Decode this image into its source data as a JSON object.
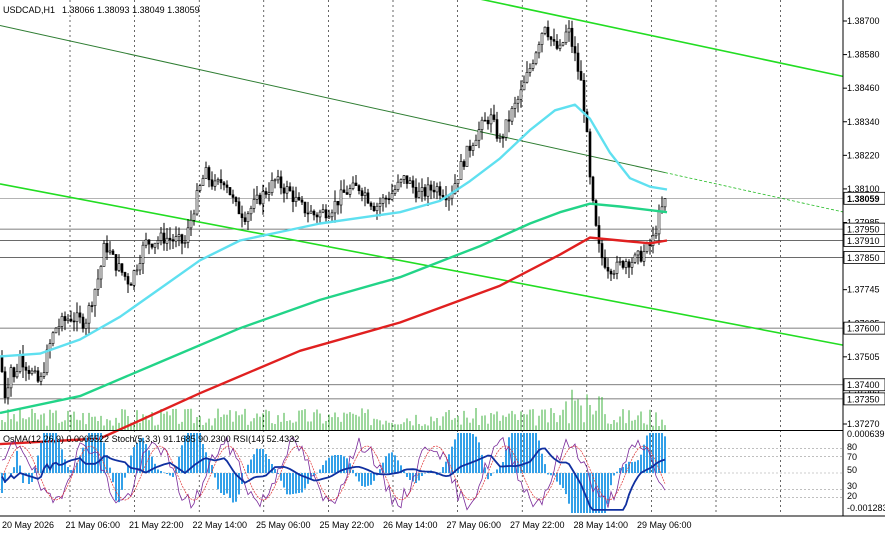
{
  "chart_data": [
    {
      "type": "candlestick",
      "symbol_header": "USDCAD,H1",
      "ohlc_header": "1.38066 1.38093 1.38049 1.38059",
      "current_price": "1.38059",
      "ylim": [
        1.3724,
        1.3876
      ],
      "y_ticks": [
        "1.38700",
        "1.38580",
        "1.38460",
        "1.38340",
        "1.38220",
        "1.38100",
        "1.37985",
        "1.37865",
        "1.37745",
        "1.37625",
        "1.37505",
        "1.37385",
        "1.37270"
      ],
      "x_labels": [
        "20 May 2026",
        "21 May 06:00",
        "21 May 22:00",
        "22 May 14:00",
        "25 May 06:00",
        "25 May 22:00",
        "26 May 14:00",
        "27 May 06:00",
        "27 May 22:00",
        "28 May 14:00",
        "29 May 06:00"
      ],
      "level_lines": [
        {
          "label": "1.37950",
          "value": 1.3795
        },
        {
          "label": "1.37910",
          "value": 1.3791
        },
        {
          "label": "1.37850",
          "value": 1.3785
        },
        {
          "label": "1.37600",
          "value": 1.376
        },
        {
          "label": "1.37400",
          "value": 1.374
        },
        {
          "label": "1.37350",
          "value": 1.3735
        }
      ],
      "close_path": [
        [
          0,
          1.375
        ],
        [
          6,
          1.3734
        ],
        [
          10,
          1.3748
        ],
        [
          14,
          1.3742
        ],
        [
          20,
          1.375
        ],
        [
          30,
          1.3745
        ],
        [
          40,
          1.374
        ],
        [
          45,
          1.3748
        ],
        [
          55,
          1.376
        ],
        [
          70,
          1.3764
        ],
        [
          85,
          1.3762
        ],
        [
          100,
          1.378
        ],
        [
          105,
          1.379
        ],
        [
          115,
          1.3783
        ],
        [
          130,
          1.3776
        ],
        [
          145,
          1.379
        ],
        [
          165,
          1.3792
        ],
        [
          185,
          1.379
        ],
        [
          195,
          1.3804
        ],
        [
          205,
          1.3815
        ],
        [
          215,
          1.381
        ],
        [
          225,
          1.3813
        ],
        [
          235,
          1.3803
        ],
        [
          245,
          1.38
        ],
        [
          260,
          1.3806
        ],
        [
          275,
          1.3812
        ],
        [
          290,
          1.3808
        ],
        [
          300,
          1.3803
        ],
        [
          315,
          1.38
        ],
        [
          330,
          1.3802
        ],
        [
          345,
          1.3808
        ],
        [
          360,
          1.381
        ],
        [
          375,
          1.3803
        ],
        [
          390,
          1.3807
        ],
        [
          405,
          1.3813
        ],
        [
          420,
          1.3807
        ],
        [
          435,
          1.381
        ],
        [
          450,
          1.3807
        ],
        [
          462,
          1.3818
        ],
        [
          475,
          1.3828
        ],
        [
          490,
          1.3835
        ],
        [
          500,
          1.3826
        ],
        [
          510,
          1.3835
        ],
        [
          520,
          1.3842
        ],
        [
          530,
          1.3852
        ],
        [
          540,
          1.3863
        ],
        [
          545,
          1.3868
        ],
        [
          553,
          1.386
        ],
        [
          560,
          1.3858
        ],
        [
          568,
          1.3866
        ],
        [
          575,
          1.3856
        ],
        [
          582,
          1.3845
        ],
        [
          586,
          1.3832
        ],
        [
          590,
          1.3812
        ],
        [
          595,
          1.3797
        ],
        [
          600,
          1.3786
        ],
        [
          608,
          1.3782
        ],
        [
          616,
          1.3781
        ],
        [
          625,
          1.3784
        ],
        [
          635,
          1.3784
        ],
        [
          645,
          1.3787
        ],
        [
          652,
          1.379
        ],
        [
          658,
          1.3798
        ],
        [
          663,
          1.3803
        ],
        [
          667,
          1.3806
        ]
      ],
      "moving_averages": [
        {
          "color": "#5fe0f0",
          "points": [
            [
              0,
              1.375
            ],
            [
              40,
              1.3751
            ],
            [
              80,
              1.3756
            ],
            [
              120,
              1.3764
            ],
            [
              160,
              1.3774
            ],
            [
              200,
              1.3784
            ],
            [
              240,
              1.3791
            ],
            [
              280,
              1.3794
            ],
            [
              320,
              1.3797
            ],
            [
              360,
              1.3799
            ],
            [
              400,
              1.3801
            ],
            [
              440,
              1.3805
            ],
            [
              470,
              1.3812
            ],
            [
              500,
              1.382
            ],
            [
              530,
              1.383
            ],
            [
              555,
              1.3837
            ],
            [
              575,
              1.3839
            ],
            [
              590,
              1.3834
            ],
            [
              610,
              1.3822
            ],
            [
              630,
              1.3813
            ],
            [
              650,
              1.381
            ],
            [
              667,
              1.3809
            ]
          ]
        },
        {
          "color": "#22d488",
          "points": [
            [
              0,
              1.373
            ],
            [
              80,
              1.3736
            ],
            [
              160,
              1.3748
            ],
            [
              240,
              1.376
            ],
            [
              320,
              1.377
            ],
            [
              400,
              1.3778
            ],
            [
              480,
              1.3789
            ],
            [
              530,
              1.3797
            ],
            [
              560,
              1.3801
            ],
            [
              590,
              1.3804
            ],
            [
              620,
              1.3803
            ],
            [
              667,
              1.3801
            ]
          ]
        },
        {
          "color": "#e02020",
          "points": [
            [
              0,
              1.3719
            ],
            [
              100,
              1.3721
            ],
            [
              200,
              1.3737
            ],
            [
              300,
              1.3752
            ],
            [
              400,
              1.3762
            ],
            [
              500,
              1.3775
            ],
            [
              560,
              1.3786
            ],
            [
              590,
              1.3792
            ],
            [
              620,
              1.3791
            ],
            [
              650,
              1.379
            ],
            [
              667,
              1.3791
            ]
          ]
        }
      ],
      "channel_lines": [
        {
          "color": "#22dd22",
          "from": [
            458,
            1.3878
          ],
          "to": [
            843,
            1.3849
          ]
        },
        {
          "color": "#22dd22",
          "from": [
            0,
            1.3811
          ],
          "to": [
            843,
            1.3754
          ]
        },
        {
          "color": "#2e7d32",
          "from": [
            0,
            1.3867
          ],
          "to": [
            665,
            1.3815
          ]
        }
      ],
      "indicator_header": "OsMA(12,26,9) 0.0005522  Stoch(5,3,3) 91.1685 90.2300  RSI(14) 52.4332",
      "indicator_ticks": [
        "0.000639",
        "80",
        "70",
        "50",
        "30",
        "20",
        "-0.001283"
      ]
    }
  ]
}
